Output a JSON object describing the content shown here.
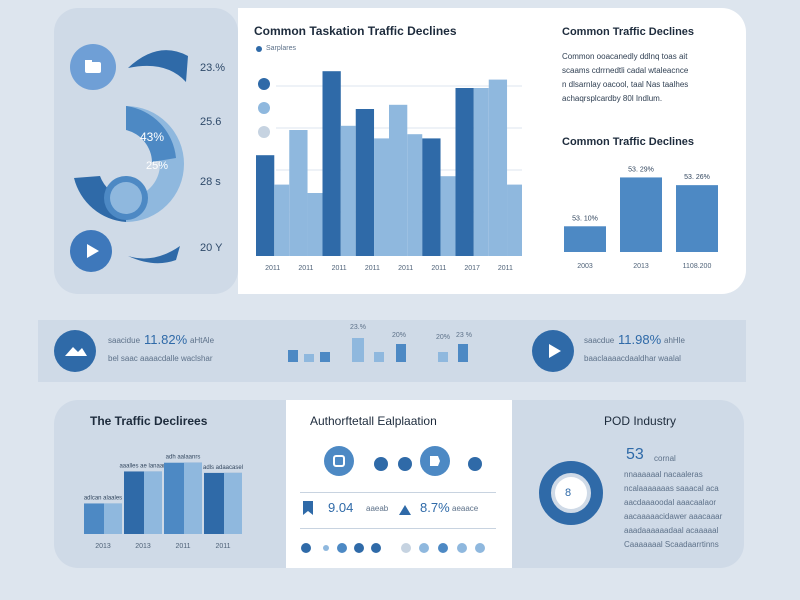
{
  "colors": {
    "dark": "#2f6aa8",
    "mid": "#4d89c4",
    "light": "#8fb8de",
    "pale": "#c6d3e1",
    "bg": "#dde5ee"
  },
  "top_left": {
    "stats": [
      "23.%",
      "25.6",
      "28 s",
      "20 Y"
    ],
    "ring_labels": [
      "43%",
      "25%"
    ]
  },
  "center_chart": {
    "title": "Common Taskation Traffic Declines",
    "legend": "Sarplares",
    "legend_dots": [
      "dark",
      "mid",
      "pale"
    ],
    "x_labels": [
      "2011",
      "2011",
      "2011",
      "2011",
      "2011",
      "2011",
      "2017",
      "2011"
    ]
  },
  "right_top": {
    "title": "Common Traffic Declines",
    "paragraph": [
      "Common ooacanedly ddlnq toas ait",
      "scaams cdrrnedtli cadal wtaleacnce",
      "n dlsarnlay oacool, taal Nas taalhes",
      "achaqrsplcardby 80l Indlum."
    ],
    "subtitle": "Common Traffic Declines",
    "bar_labels": [
      "53. 10%",
      "53. 29%",
      "53. 26%"
    ],
    "x_labels": [
      "2003",
      "2013",
      "1108.200"
    ]
  },
  "strip": {
    "left_label": "saacidue",
    "left_value": "11.82%",
    "left_tail": "aHtAle",
    "left_sub": "bel saac aaaacdalle waclshar",
    "mini_labels": [
      "23.%",
      "20%",
      "20%",
      "23 %"
    ],
    "right_label": "saacdue",
    "right_value": "11.98%",
    "right_tail": "ahHle",
    "right_sub": "baaclaaaacdaaldhar waalal"
  },
  "bottom_left": {
    "title": "The Traffic Declirees",
    "bar_tags": [
      "adlcan alaales",
      "aaalles ae lanaan",
      "adh aalaanrs",
      "adls adaacasel"
    ],
    "x_labels": [
      "2013",
      "2013",
      "2011",
      "2011"
    ]
  },
  "bottom_mid": {
    "title": "Authorftetall Ealplaation",
    "stat_left": "9.04",
    "stat_left_sub": "aaeab",
    "stat_right": "8.7%",
    "stat_right_sub": "aeaace"
  },
  "bottom_right": {
    "title": "POD Industry",
    "donut_value": "8",
    "big_value": "53",
    "big_suffix": "cornal",
    "lines": [
      "nnaaaaaal nacaaleras",
      "ncalaaaaaaas saaacal aca",
      "aacdaaaoodal aaacaalaor",
      "aacaaaaacidawer aaacaaar",
      "aaadaaaaaadaal acaaaaal",
      "Caaaaaaal Scaadaarrtinns"
    ]
  },
  "chart_data": [
    {
      "type": "bar",
      "title": "Common Taskation Traffic Declines",
      "categories": [
        "2011",
        "2011",
        "2011",
        "2011",
        "2011",
        "2011",
        "2017",
        "2011"
      ],
      "series": [
        {
          "values": [
            24,
            30,
            44,
            35,
            36,
            28,
            40,
            42
          ]
        },
        {
          "values": [
            17,
            15,
            31,
            28,
            29,
            19,
            40,
            17
          ]
        }
      ],
      "ylim": [
        0,
        50
      ]
    },
    {
      "type": "bar",
      "title": "Common Traffic Declines",
      "categories": [
        "2003",
        "2013",
        "1108.200"
      ],
      "values": [
        10,
        29,
        26
      ],
      "ylim": [
        0,
        35
      ]
    },
    {
      "type": "bar",
      "title": "The Traffic Declirees",
      "categories": [
        "2013",
        "2013",
        "2011",
        "2011"
      ],
      "values": [
        21,
        43,
        49,
        42
      ],
      "ylim": [
        0,
        55
      ]
    }
  ]
}
